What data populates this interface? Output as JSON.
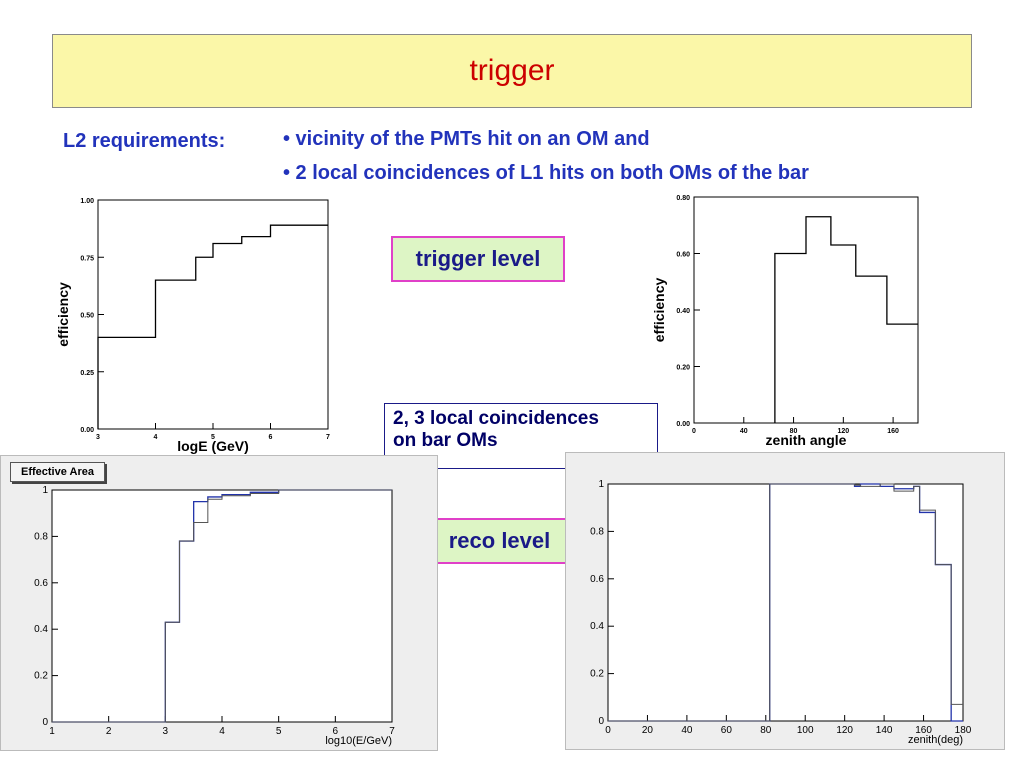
{
  "slide": {
    "title": "trigger",
    "requirements_label": "L2 requirements:",
    "bullets": [
      "•  vicinity of the PMTs hit on an OM and",
      "• 2 local coincidences of L1 hits on both OMs of the bar"
    ],
    "trigger_level_label": "trigger level",
    "reco_level_label": "reco level",
    "coincidence_note": [
      "2, 3 local coincidences",
      "on bar OMs"
    ],
    "legend_tag": "Effective Area"
  },
  "colors": {
    "title": "#cc0000",
    "text_blue": "#2233bb",
    "title_bg": "#fbf7a8",
    "box_border_pink": "#e040c8",
    "box_bg_green": "#ddf5c5",
    "hist_blue": "#2233aa"
  },
  "chart_data": [
    {
      "type": "line",
      "step": true,
      "xlabel": "logE (GeV)",
      "ylabel": "efficiency",
      "xlim": [
        3,
        7
      ],
      "ylim": [
        0,
        1
      ],
      "xticks": [
        "3",
        "4",
        "5",
        "6",
        "7"
      ],
      "yticks": [
        "0.00",
        "0.25",
        "0.50",
        "0.75",
        "1.00"
      ],
      "edges": [
        3,
        4,
        4.7,
        5,
        5.5,
        6,
        7
      ],
      "values": [
        0.4,
        0.65,
        0.75,
        0.81,
        0.84,
        0.89
      ]
    },
    {
      "type": "line",
      "step": true,
      "xlabel": "zenith angle",
      "ylabel": "efficiency",
      "xlim": [
        0,
        180
      ],
      "ylim": [
        0,
        0.8
      ],
      "xticks": [
        "0",
        "40",
        "80",
        "120",
        "160"
      ],
      "yticks": [
        "0.00",
        "0.20",
        "0.40",
        "0.60",
        "0.80"
      ],
      "edges": [
        65,
        90,
        110,
        130,
        155,
        180
      ],
      "values": [
        0.6,
        0.73,
        0.63,
        0.52,
        0.35
      ]
    },
    {
      "type": "line",
      "step": true,
      "xlabel": "log10(E/GeV)",
      "ylabel": "",
      "xlim": [
        1,
        7
      ],
      "ylim": [
        0,
        1
      ],
      "xticks": [
        "1",
        "2",
        "3",
        "4",
        "5",
        "6",
        "7"
      ],
      "yticks": [
        "0",
        "0.2",
        "0.4",
        "0.6",
        "0.8",
        "1"
      ],
      "series": [
        {
          "color": "#2233aa",
          "edges": [
            1,
            3,
            3.25,
            3.5,
            3.75,
            4,
            4.5,
            5,
            6,
            7
          ],
          "values": [
            0,
            0.43,
            0.78,
            0.95,
            0.97,
            0.98,
            0.99,
            1.0,
            1.0
          ]
        },
        {
          "color": "#555555",
          "edges": [
            1,
            3,
            3.25,
            3.5,
            3.75,
            4,
            4.5,
            5,
            6,
            7
          ],
          "values": [
            0,
            0.43,
            0.78,
            0.86,
            0.96,
            0.975,
            0.985,
            1.0,
            1.0
          ]
        }
      ]
    },
    {
      "type": "line",
      "step": true,
      "xlabel": "zenith(deg)",
      "ylabel": "",
      "xlim": [
        0,
        180
      ],
      "ylim": [
        0,
        1
      ],
      "xticks": [
        "0",
        "20",
        "40",
        "60",
        "80",
        "100",
        "120",
        "140",
        "160",
        "180"
      ],
      "yticks": [
        "0",
        "0.2",
        "0.4",
        "0.6",
        "0.8",
        "1"
      ],
      "series": [
        {
          "color": "#2233aa",
          "edges": [
            0,
            82,
            125,
            128,
            138,
            145,
            155,
            158,
            166,
            174,
            180
          ],
          "values": [
            0,
            1.0,
            0.99,
            1.0,
            0.99,
            0.98,
            0.99,
            0.88,
            0.66,
            0
          ],
          "tail_end": 174
        },
        {
          "color": "#555555",
          "edges": [
            0,
            82,
            125,
            128,
            138,
            145,
            155,
            158,
            166,
            174,
            180
          ],
          "values": [
            0,
            1.0,
            0.995,
            0.99,
            1.0,
            0.97,
            0.99,
            0.89,
            0.66,
            0.07
          ]
        }
      ]
    }
  ]
}
